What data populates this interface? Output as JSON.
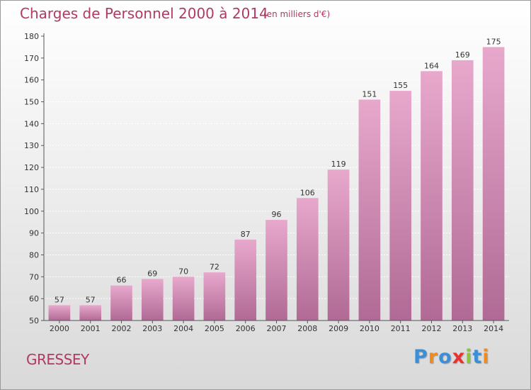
{
  "colors": {
    "title": "#b03a62",
    "bar_top": "#e8a8cc",
    "bar_bottom": "#b06a95",
    "axis": "#555555",
    "grid": "#ffffff"
  },
  "header": {
    "title": "Charges de Personnel 2000 à 2014",
    "unit": "(en milliers d'€)"
  },
  "footer": {
    "commune": "GRESSEY",
    "logo_letters": [
      {
        "char": "P",
        "color": "#3c8fd6"
      },
      {
        "char": "r",
        "color": "#f28a1e"
      },
      {
        "char": "o",
        "color": "#3c8fd6"
      },
      {
        "char": "x",
        "color": "#e8322f"
      },
      {
        "char": "i",
        "color": "#8cc63f"
      },
      {
        "char": "t",
        "color": "#3c8fd6"
      },
      {
        "char": "i",
        "color": "#f28a1e"
      }
    ]
  },
  "chart_data": {
    "type": "bar",
    "title": "Charges de Personnel 2000 à 2014",
    "subtitle": "(en milliers d'€)",
    "xlabel": "",
    "ylabel": "",
    "categories": [
      "2000",
      "2001",
      "2002",
      "2003",
      "2004",
      "2005",
      "2006",
      "2007",
      "2008",
      "2009",
      "2010",
      "2011",
      "2012",
      "2013",
      "2014"
    ],
    "values": [
      57,
      57,
      66,
      69,
      70,
      72,
      87,
      96,
      106,
      119,
      151,
      155,
      164,
      169,
      175
    ],
    "value_labels": [
      "57",
      "57",
      "66",
      "69",
      "70",
      "72",
      "87",
      "96",
      "106",
      "119",
      "151",
      "155",
      "164",
      "169",
      "175"
    ],
    "ylim": [
      50,
      180
    ],
    "yticks": [
      50,
      60,
      70,
      80,
      90,
      100,
      110,
      120,
      130,
      140,
      150,
      160,
      170,
      180
    ],
    "ytick_labels": [
      "50",
      "60",
      "70",
      "80",
      "90",
      "100",
      "110",
      "120",
      "130",
      "140",
      "150",
      "160",
      "170",
      "180"
    ],
    "grid": true,
    "legend": "none"
  }
}
